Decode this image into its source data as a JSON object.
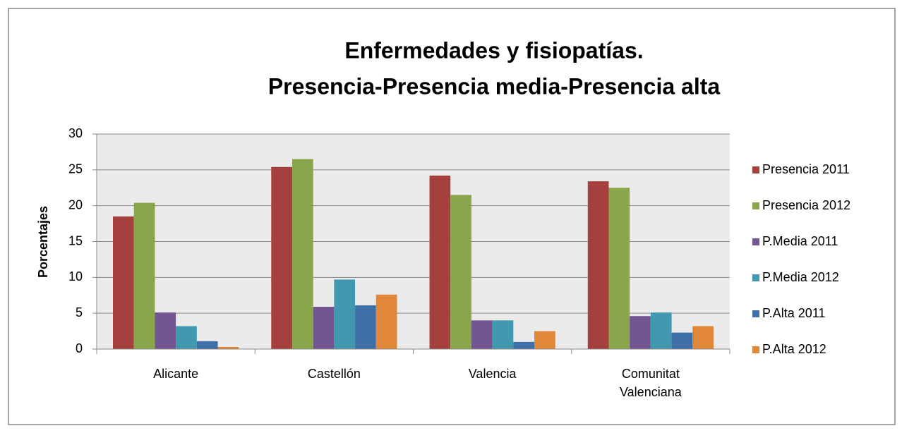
{
  "chart_data": {
    "type": "bar",
    "title": "Enfermedades y fisiopatías.",
    "subtitle": "Presencia-Presencia media-Presencia alta",
    "y_label": "Porcentajes",
    "categories": [
      "Alicante",
      "Castellón",
      "Valencia",
      "Comunitat Valenciana"
    ],
    "series": [
      {
        "name": "Presencia 2011",
        "color": "#a5403e",
        "values": [
          18.5,
          25.4,
          24.2,
          23.4
        ]
      },
      {
        "name": "Presencia 2012",
        "color": "#8aa64c",
        "values": [
          20.4,
          26.5,
          21.5,
          22.5
        ]
      },
      {
        "name": "P.Media 2011",
        "color": "#735592",
        "values": [
          5.1,
          5.9,
          4.0,
          4.6
        ]
      },
      {
        "name": "P.Media 2012",
        "color": "#4198af",
        "values": [
          3.2,
          9.7,
          4.0,
          5.1
        ]
      },
      {
        "name": "P.Alta 2011",
        "color": "#3e6fa8",
        "values": [
          1.1,
          6.1,
          1.0,
          2.3
        ]
      },
      {
        "name": "P.Alta 2012",
        "color": "#e0873a",
        "values": [
          0.3,
          7.6,
          2.5,
          3.2
        ]
      }
    ],
    "ylim": [
      0,
      30
    ],
    "yticks": [
      0,
      5,
      10,
      15,
      20,
      25,
      30
    ],
    "grid": true,
    "legend": "right"
  }
}
